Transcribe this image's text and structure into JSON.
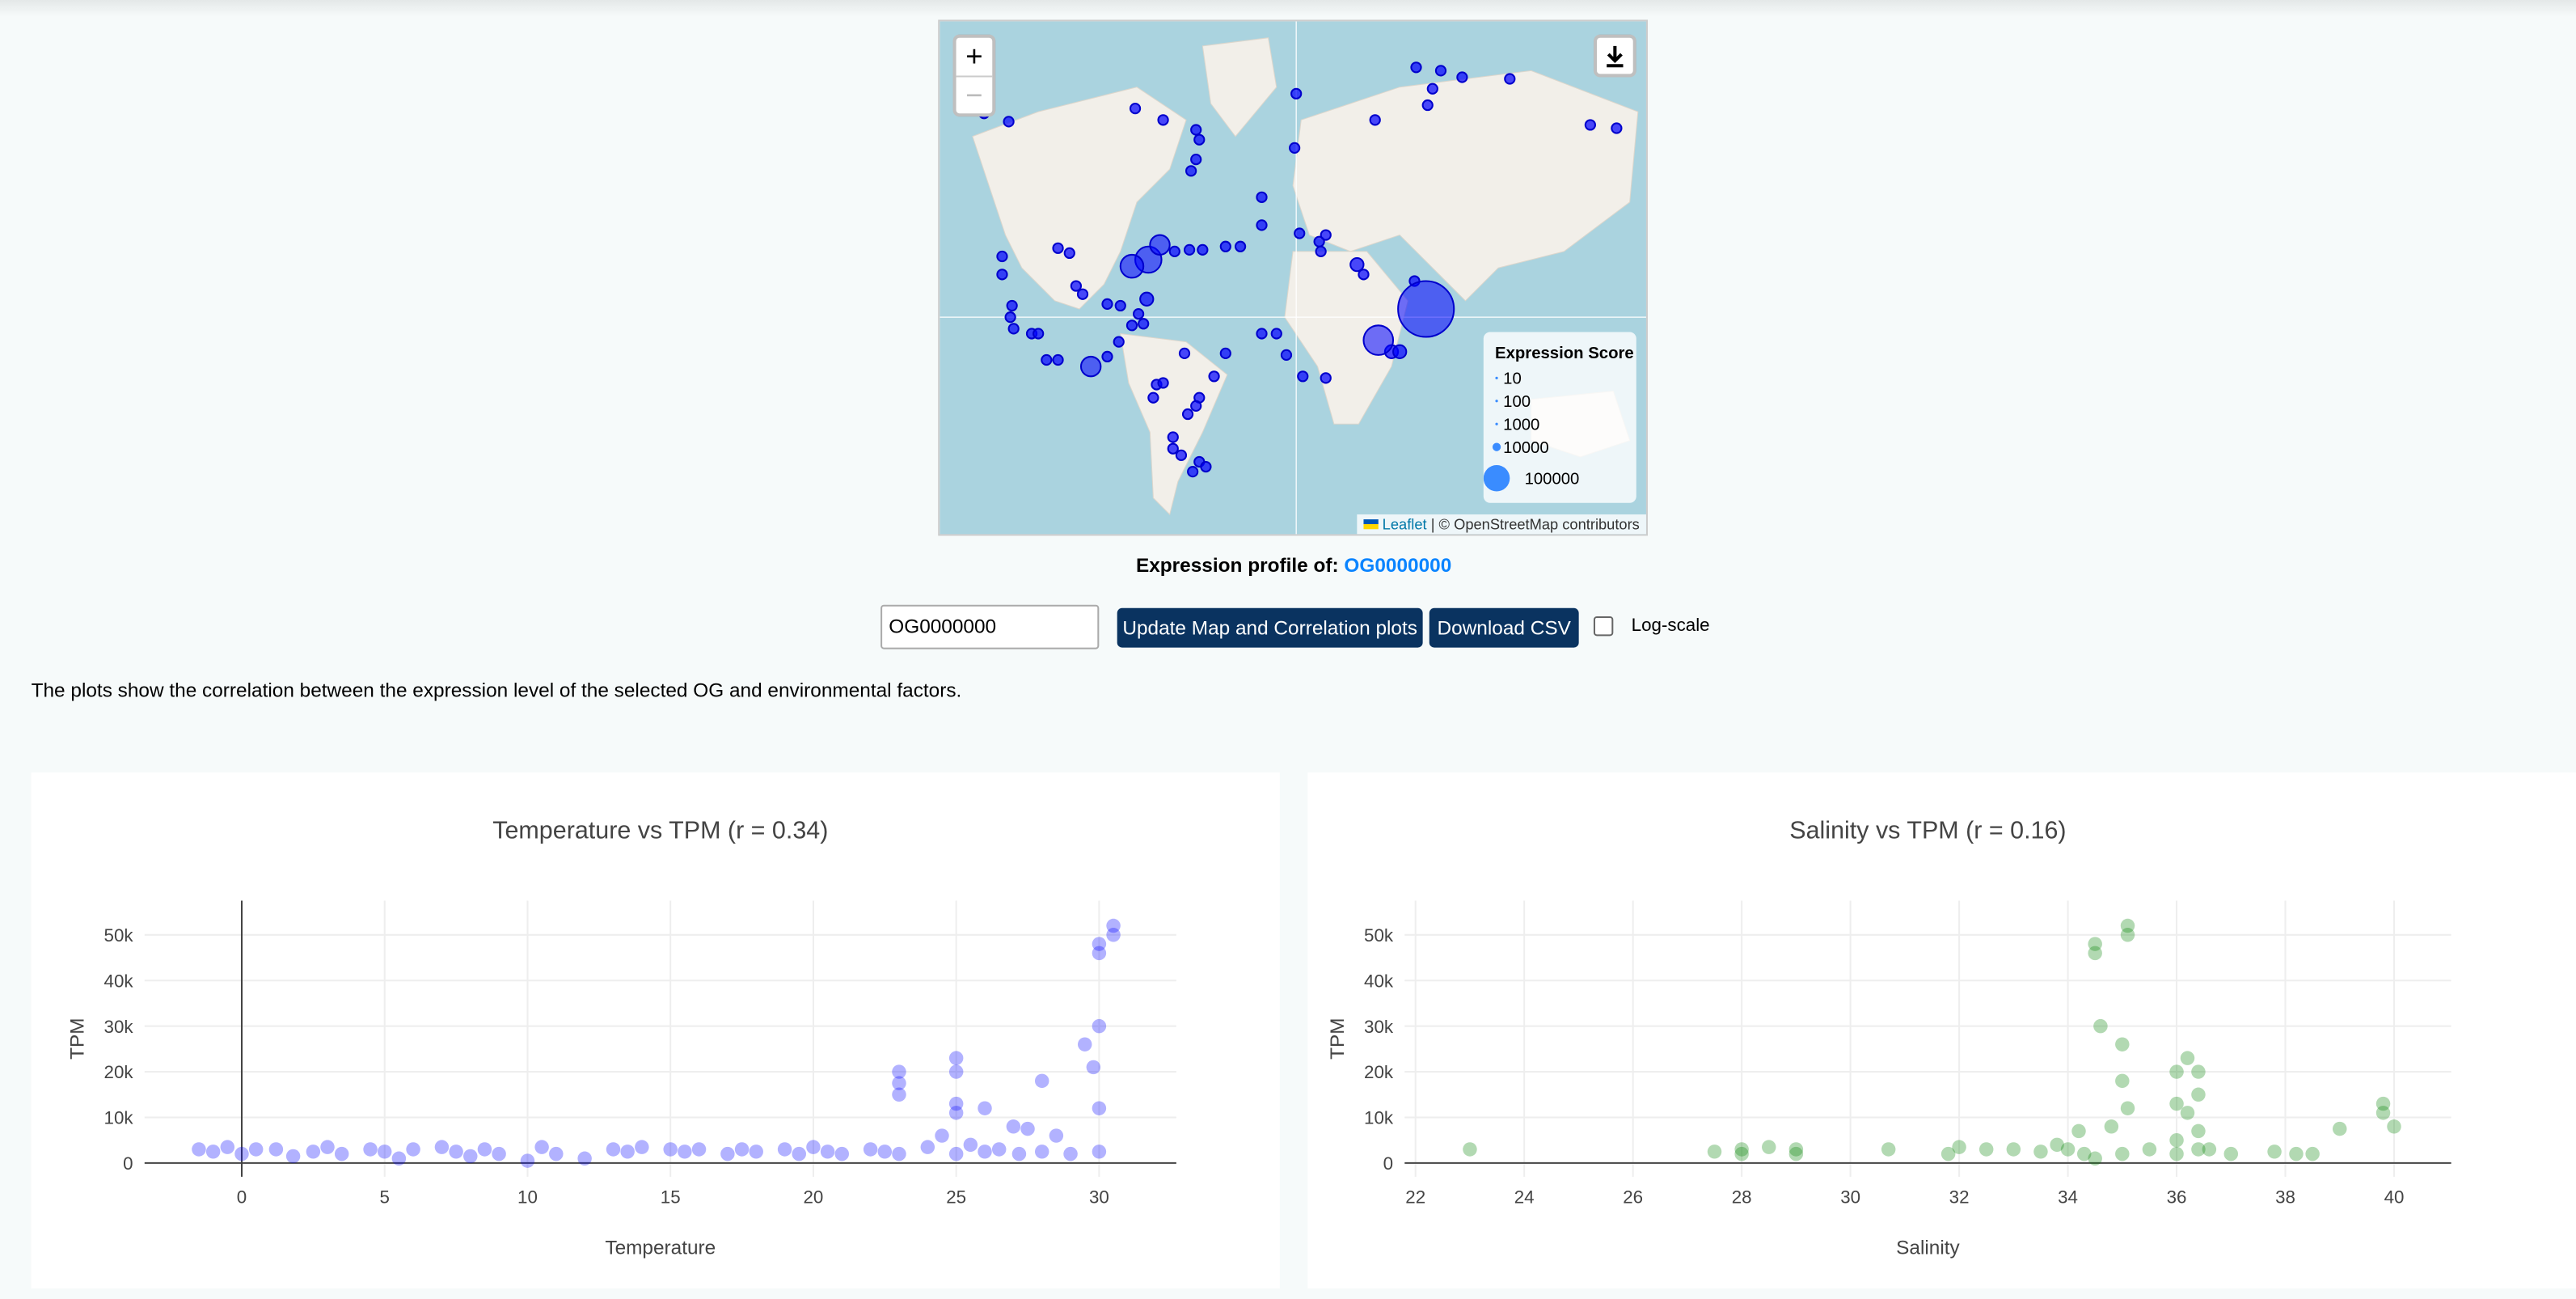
{
  "map": {
    "zoom_in": "+",
    "zoom_out": "−",
    "legend": {
      "title": "Expression Score",
      "items": [
        10,
        100,
        1000,
        10000,
        100000
      ]
    },
    "attribution": {
      "link": "Leaflet",
      "text": "| © OpenStreetMap contributors"
    }
  },
  "profile": {
    "label": "Expression profile of:",
    "og": "OG0000000"
  },
  "controls": {
    "input_value": "OG0000000",
    "update_button": "Update Map and Correlation plots",
    "download_button": "Download CSV",
    "log_scale_label": "Log-scale"
  },
  "description": "The plots show the correlation between the expression level of the selected OG and environmental factors.",
  "chart_data": [
    {
      "type": "scatter",
      "title": "Temperature vs TPM (r = 0.34)",
      "xlabel": "Temperature",
      "ylabel": "TPM",
      "color": "#0000ff",
      "x": [
        -1.5,
        -1,
        -0.5,
        0,
        0.5,
        1.2,
        1.8,
        2.5,
        3,
        3.5,
        4.5,
        5,
        5.5,
        6,
        7,
        7.5,
        8,
        8.5,
        9,
        10,
        10.5,
        11,
        12,
        13,
        13.5,
        14,
        15,
        15.5,
        16,
        17,
        17.5,
        18,
        19,
        19.5,
        20,
        20.5,
        21,
        22,
        22.5,
        23,
        23,
        23,
        23,
        24,
        24.5,
        25,
        25,
        25,
        25,
        25,
        25.5,
        26,
        26,
        26.5,
        27,
        27.2,
        27.5,
        28,
        28,
        28.5,
        29,
        29.5,
        29.8,
        30,
        30,
        30,
        30,
        30,
        30.5,
        30.5
      ],
      "values": [
        3000,
        2500,
        3500,
        2000,
        3000,
        3000,
        1500,
        2500,
        3500,
        2000,
        3000,
        2500,
        1000,
        3000,
        3500,
        2500,
        1500,
        3000,
        2000,
        500,
        3500,
        2000,
        1000,
        3000,
        2500,
        3500,
        3000,
        2500,
        3000,
        2000,
        3000,
        2500,
        3000,
        2000,
        3500,
        2500,
        2000,
        3000,
        2500,
        20000,
        17500,
        15000,
        2000,
        3500,
        6000,
        23000,
        20000,
        13000,
        11000,
        2000,
        4000,
        12000,
        2500,
        3000,
        8000,
        2000,
        7500,
        18000,
        2500,
        6000,
        2000,
        26000,
        21000,
        48000,
        46000,
        30000,
        12000,
        2500,
        52000,
        50000
      ],
      "xlim": [
        -3.4,
        32.7
      ],
      "xticks": [
        0,
        5,
        10,
        15,
        20,
        25,
        30
      ],
      "ylim": [
        -3000,
        57500
      ],
      "yticks": [
        0,
        {
          "value": 10000,
          "label": "10k"
        },
        {
          "value": 20000,
          "label": "20k"
        },
        {
          "value": 30000,
          "label": "30k"
        },
        {
          "value": 40000,
          "label": "40k"
        },
        {
          "value": 50000,
          "label": "50k"
        }
      ],
      "grid": true
    },
    {
      "type": "scatter",
      "title": "Salinity vs TPM (r = 0.16)",
      "xlabel": "Salinity",
      "ylabel": "TPM",
      "color": "#008000",
      "x": [
        23,
        27.5,
        28,
        28,
        28.5,
        29,
        29,
        30.7,
        31.8,
        32,
        32.5,
        33,
        33.5,
        33.8,
        34,
        34.2,
        34.3,
        34.5,
        34.5,
        34.5,
        34.6,
        34.8,
        35,
        35,
        35,
        35.1,
        35.1,
        35.1,
        35.5,
        36,
        36,
        36,
        36,
        36.2,
        36.2,
        36.4,
        36.4,
        36.4,
        36.4,
        36.6,
        37,
        37.8,
        38.2,
        38.5,
        39,
        39.8,
        39.8,
        40
      ],
      "values": [
        3000,
        2500,
        2000,
        3000,
        3500,
        3000,
        2000,
        3000,
        2000,
        3500,
        3000,
        3000,
        2500,
        4000,
        3000,
        7000,
        2000,
        46000,
        48000,
        1000,
        30000,
        8000,
        26000,
        18000,
        2000,
        50000,
        52000,
        12000,
        3000,
        20000,
        13000,
        5000,
        2000,
        23000,
        11000,
        20000,
        15000,
        7000,
        3000,
        3000,
        2000,
        2500,
        2000,
        2000,
        7500,
        13000,
        11000,
        8000
      ],
      "xlim": [
        21.8,
        41.05
      ],
      "xticks": [
        22,
        24,
        26,
        28,
        30,
        32,
        34,
        36,
        38,
        40
      ],
      "ylim": [
        -3000,
        57500
      ],
      "yticks": [
        0,
        {
          "value": 10000,
          "label": "10k"
        },
        {
          "value": 20000,
          "label": "20k"
        },
        {
          "value": 30000,
          "label": "30k"
        },
        {
          "value": 40000,
          "label": "40k"
        },
        {
          "value": 50000,
          "label": "50k"
        }
      ],
      "grid": true
    }
  ]
}
